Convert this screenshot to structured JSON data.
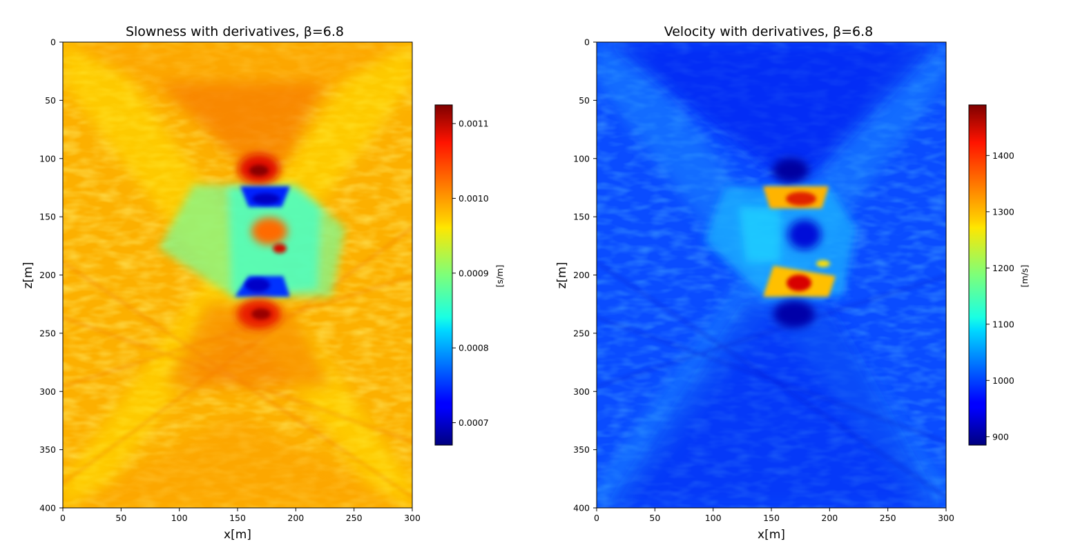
{
  "chart_data": [
    {
      "type": "heatmap",
      "title": "Slowness with derivatives, β=6.8",
      "xlabel": "x[m]",
      "ylabel": "z[m]",
      "xlim": [
        0,
        300
      ],
      "ylim": [
        400,
        0
      ],
      "xticks": [
        "0",
        "50",
        "100",
        "150",
        "200",
        "250",
        "300"
      ],
      "yticks": [
        "0",
        "50",
        "100",
        "150",
        "200",
        "250",
        "300",
        "350",
        "400"
      ],
      "colormap": "jet",
      "colorbar": {
        "label": "[s/m]",
        "range": [
          0.00067,
          0.001125
        ],
        "ticks": [
          "0.0007",
          "0.0008",
          "0.0009",
          "0.0010",
          "0.0011"
        ],
        "tick_values": [
          0.0007,
          0.0008,
          0.0009,
          0.001,
          0.0011
        ]
      },
      "background_value": 0.00098,
      "features": [
        {
          "name": "upper_high",
          "x": 168,
          "z": 110,
          "value": 0.00112
        },
        {
          "name": "upper_low",
          "x": 175,
          "z": 135,
          "value": 0.00071
        },
        {
          "name": "center_high",
          "x": 178,
          "z": 165,
          "value": 0.00104
        },
        {
          "name": "lower_low",
          "x": 165,
          "z": 205,
          "value": 0.00072
        },
        {
          "name": "lower_high",
          "x": 170,
          "z": 235,
          "value": 0.00112
        },
        {
          "name": "wing_band",
          "x": 175,
          "z": 170,
          "value": 0.00085
        }
      ]
    },
    {
      "type": "heatmap",
      "title": "Velocity with derivatives, β=6.8",
      "xlabel": "x[m]",
      "ylabel": "z[m]",
      "xlim": [
        0,
        300
      ],
      "ylim": [
        400,
        0
      ],
      "xticks": [
        "0",
        "50",
        "100",
        "150",
        "200",
        "250",
        "300"
      ],
      "yticks": [
        "0",
        "50",
        "100",
        "150",
        "200",
        "250",
        "300",
        "350",
        "400"
      ],
      "colormap": "jet",
      "colorbar": {
        "label": "[m/s]",
        "range": [
          885,
          1490
        ],
        "ticks": [
          "900",
          "1000",
          "1100",
          "1200",
          "1300",
          "1400"
        ],
        "tick_values": [
          900,
          1000,
          1100,
          1200,
          1300,
          1400
        ]
      },
      "background_value": 1020,
      "features": [
        {
          "name": "upper_low",
          "x": 168,
          "z": 110,
          "value": 900
        },
        {
          "name": "upper_high",
          "x": 175,
          "z": 135,
          "value": 1410
        },
        {
          "name": "center_low",
          "x": 178,
          "z": 165,
          "value": 960
        },
        {
          "name": "lower_high",
          "x": 172,
          "z": 205,
          "value": 1430
        },
        {
          "name": "lower_low",
          "x": 170,
          "z": 235,
          "value": 900
        },
        {
          "name": "wing_band",
          "x": 160,
          "z": 170,
          "value": 1120
        }
      ]
    }
  ]
}
